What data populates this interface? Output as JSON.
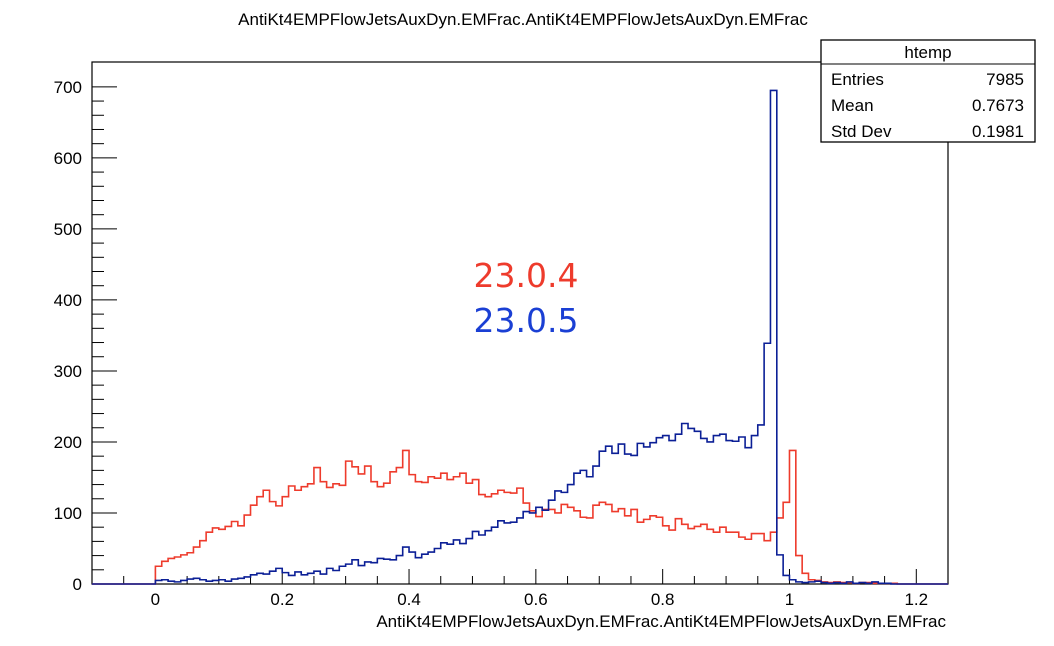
{
  "chart_data": {
    "type": "histogram",
    "title": "AntiKt4EMPFlowJetsAuxDyn.EMFrac.AntiKt4EMPFlowJetsAuxDyn.EMFrac",
    "xlabel": "AntiKt4EMPFlowJetsAuxDyn.EMFrac.AntiKt4EMPFlowJetsAuxDyn.EMFrac",
    "ylabel": "",
    "xlim": [
      -0.1,
      1.25
    ],
    "ylim": [
      0,
      735
    ],
    "x_ticks": [
      "0",
      "0.2",
      "0.4",
      "0.6",
      "0.8",
      "1",
      "1.2"
    ],
    "y_ticks": [
      "0",
      "100",
      "200",
      "300",
      "400",
      "500",
      "600",
      "700"
    ],
    "grid": false,
    "bin_width": 0.01,
    "bin_start": 0.0,
    "series": [
      {
        "name": "23.0.4",
        "color": "#ee3b2c",
        "values": [
          25,
          32,
          36,
          38,
          41,
          44,
          52,
          61,
          73,
          79,
          77,
          81,
          88,
          82,
          97,
          111,
          123,
          132,
          116,
          110,
          123,
          138,
          132,
          137,
          141,
          164,
          144,
          136,
          141,
          139,
          173,
          165,
          155,
          166,
          144,
          137,
          142,
          158,
          164,
          188,
          154,
          144,
          143,
          151,
          149,
          156,
          147,
          151,
          156,
          142,
          147,
          126,
          123,
          127,
          132,
          129,
          128,
          135,
          114,
          103,
          95,
          105,
          105,
          100,
          112,
          108,
          103,
          94,
          93,
          111,
          115,
          112,
          102,
          106,
          96,
          105,
          87,
          91,
          96,
          94,
          82,
          76,
          92,
          84,
          78,
          81,
          84,
          77,
          73,
          80,
          73,
          73,
          66,
          63,
          71,
          71,
          61,
          73,
          93,
          115,
          188,
          40,
          15,
          6,
          5,
          3,
          2,
          3,
          2,
          2,
          1,
          2,
          2,
          1,
          1,
          1,
          1,
          0,
          0,
          0
        ]
      },
      {
        "name": "23.0.5",
        "color": "#0b1f96",
        "values": [
          5,
          6,
          4,
          3,
          5,
          7,
          8,
          6,
          4,
          5,
          6,
          4,
          7,
          8,
          10,
          13,
          15,
          14,
          18,
          22,
          16,
          12,
          17,
          13,
          15,
          18,
          14,
          22,
          19,
          25,
          28,
          34,
          26,
          31,
          30,
          36,
          35,
          34,
          40,
          52,
          45,
          37,
          42,
          45,
          50,
          58,
          56,
          62,
          57,
          64,
          74,
          69,
          75,
          80,
          89,
          86,
          87,
          93,
          102,
          100,
          108,
          104,
          118,
          131,
          129,
          140,
          156,
          160,
          151,
          166,
          187,
          194,
          184,
          197,
          183,
          181,
          198,
          193,
          199,
          206,
          209,
          202,
          211,
          226,
          219,
          215,
          205,
          200,
          209,
          211,
          202,
          201,
          207,
          192,
          209,
          224,
          339,
          695,
          41,
          12,
          6,
          3,
          2,
          3,
          4,
          2,
          1,
          2,
          1,
          3,
          1,
          2,
          1,
          3,
          1,
          1,
          0,
          0,
          0,
          0
        ]
      }
    ],
    "legend": {
      "items": [
        "23.0.4",
        "23.0.5"
      ],
      "colors": [
        "#ee3b2c",
        "#0b1f96"
      ],
      "position": "center"
    },
    "stats_box": {
      "title": "htemp",
      "rows": [
        {
          "label": "Entries",
          "value": "7985"
        },
        {
          "label": "Mean",
          "value": "0.7673"
        },
        {
          "label": "Std Dev",
          "value": "0.1981"
        }
      ]
    }
  }
}
